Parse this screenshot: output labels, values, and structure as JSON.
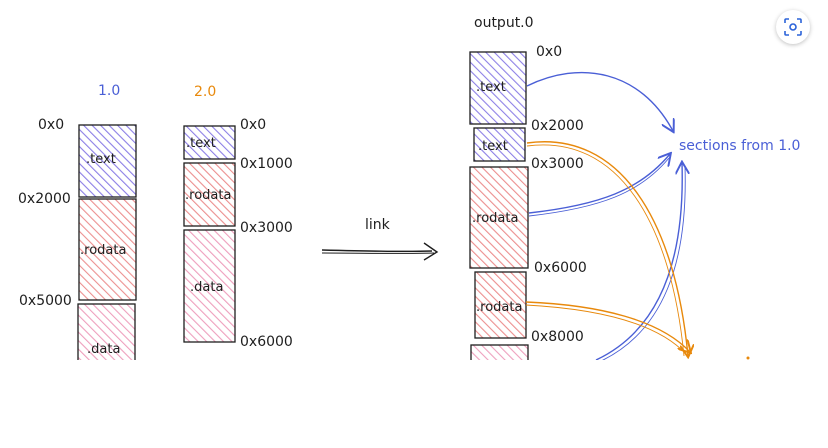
{
  "diagram": {
    "labels": {
      "input1": "1.0",
      "input2": "2.0",
      "output": "output.0",
      "link": "link",
      "sections_from": "sections from 1.0"
    },
    "input1": {
      "sections": [
        ".text",
        ".rodata",
        ".data"
      ],
      "addresses": [
        "0x0",
        "0x2000",
        "0x5000"
      ]
    },
    "input2": {
      "sections": [
        ".text",
        ".rodata",
        ".data"
      ],
      "addresses": [
        "0x0",
        "0x1000",
        "0x3000",
        "0x6000"
      ]
    },
    "output_file": {
      "sections": [
        ".text",
        ".text",
        ".rodata",
        ".rodata"
      ],
      "addresses": [
        "0x0",
        "0x2000",
        "0x3000",
        "0x6000",
        "0x8000"
      ]
    }
  },
  "colors": {
    "text_fill": "#b2a8f0",
    "rodata_fill": "#f4a8a8",
    "data_fill": "#f3b8cd",
    "stroke": "#1e1e1e",
    "blue_arrow": "#4a5fd6",
    "orange_arrow": "#e8890c"
  },
  "toolbar": {
    "focus_icon": "scan-focus-icon"
  }
}
